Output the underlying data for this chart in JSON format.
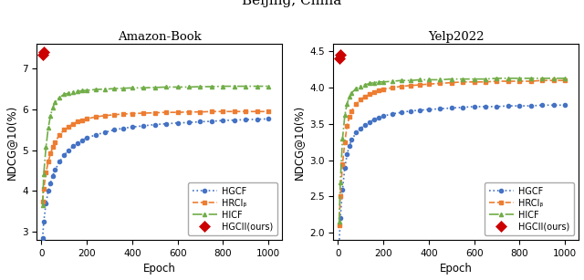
{
  "title": "Beijing, China",
  "subplot_titles": [
    "Amazon-Book",
    "Yelp2022"
  ],
  "xlabel": "Epoch",
  "ylabel": "NDCG@10(%)",
  "epochs": [
    5,
    10,
    20,
    30,
    40,
    50,
    60,
    80,
    100,
    120,
    140,
    160,
    180,
    200,
    240,
    280,
    320,
    360,
    400,
    450,
    500,
    550,
    600,
    650,
    700,
    750,
    800,
    850,
    900,
    950,
    1000
  ],
  "amazon_book": {
    "HGCF": [
      2.85,
      3.25,
      3.7,
      4.0,
      4.2,
      4.38,
      4.52,
      4.72,
      4.88,
      5.0,
      5.1,
      5.18,
      5.25,
      5.3,
      5.38,
      5.44,
      5.5,
      5.54,
      5.57,
      5.6,
      5.63,
      5.65,
      5.67,
      5.68,
      5.7,
      5.71,
      5.73,
      5.74,
      5.75,
      5.76,
      5.77
    ],
    "HRCF": [
      3.75,
      4.05,
      4.45,
      4.72,
      4.92,
      5.08,
      5.2,
      5.38,
      5.5,
      5.58,
      5.65,
      5.7,
      5.74,
      5.77,
      5.82,
      5.85,
      5.87,
      5.89,
      5.9,
      5.91,
      5.92,
      5.93,
      5.93,
      5.94,
      5.94,
      5.95,
      5.95,
      5.95,
      5.95,
      5.95,
      5.95
    ],
    "HICF": [
      3.65,
      4.42,
      5.08,
      5.55,
      5.85,
      6.05,
      6.18,
      6.3,
      6.37,
      6.4,
      6.42,
      6.44,
      6.46,
      6.47,
      6.49,
      6.5,
      6.51,
      6.52,
      6.53,
      6.53,
      6.54,
      6.55,
      6.55,
      6.55,
      6.56,
      6.56,
      6.57,
      6.57,
      6.57,
      6.57,
      6.57
    ],
    "HGCC": [
      7.35,
      7.42
    ]
  },
  "yelp2022": {
    "HGCF": [
      1.85,
      2.2,
      2.6,
      2.9,
      3.08,
      3.2,
      3.28,
      3.38,
      3.44,
      3.49,
      3.53,
      3.56,
      3.59,
      3.61,
      3.64,
      3.66,
      3.68,
      3.69,
      3.7,
      3.71,
      3.72,
      3.73,
      3.74,
      3.74,
      3.74,
      3.75,
      3.75,
      3.75,
      3.76,
      3.76,
      3.76
    ],
    "HRCF": [
      2.1,
      2.5,
      2.95,
      3.25,
      3.48,
      3.6,
      3.68,
      3.78,
      3.84,
      3.88,
      3.91,
      3.94,
      3.96,
      3.98,
      4.0,
      4.02,
      4.03,
      4.04,
      4.05,
      4.06,
      4.07,
      4.08,
      4.08,
      4.08,
      4.09,
      4.09,
      4.09,
      4.09,
      4.1,
      4.1,
      4.1
    ],
    "HICF": [
      2.15,
      2.7,
      3.3,
      3.62,
      3.78,
      3.88,
      3.93,
      3.99,
      4.02,
      4.04,
      4.06,
      4.07,
      4.08,
      4.08,
      4.09,
      4.1,
      4.1,
      4.11,
      4.11,
      4.11,
      4.12,
      4.12,
      4.12,
      4.12,
      4.13,
      4.13,
      4.13,
      4.13,
      4.13,
      4.13,
      4.13
    ],
    "HGCC": [
      4.4,
      4.45
    ]
  },
  "hgcc_epochs": [
    5,
    10
  ],
  "colors": {
    "HGCF": "#4472C4",
    "HRCF": "#ED7D31",
    "HICF": "#70AD47",
    "HGCC": "#CC0000"
  },
  "linestyles": {
    "HGCF": "dotted",
    "HRCF": "dashed",
    "HICF": "dashdot",
    "HGCC": "none"
  },
  "markers": {
    "HGCF": "o",
    "HRCF": "s",
    "HICF": "^",
    "HGCC": "D"
  },
  "legend_labels": {
    "HGCF": "HGCF",
    "HRCF": "HRCIᵦ",
    "HICF": "HICF",
    "HGCC": "HGCII(ours)"
  },
  "amazon_ylim": [
    2.8,
    7.6
  ],
  "yelp_ylim": [
    1.9,
    4.6
  ],
  "amazon_yticks": [
    3.0,
    4.0,
    5.0,
    6.0,
    7.0
  ],
  "yelp_yticks": [
    2.0,
    2.5,
    3.0,
    3.5,
    4.0,
    4.5
  ],
  "xticks": [
    0,
    200,
    400,
    600,
    800,
    1000
  ]
}
